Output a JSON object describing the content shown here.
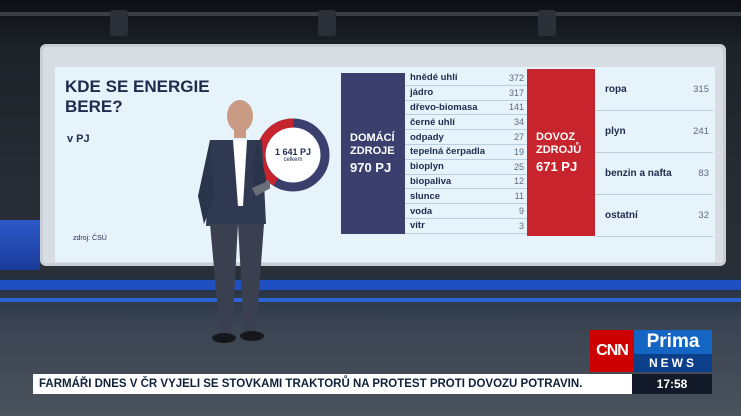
{
  "graphic": {
    "title": "KDE SE ENERGIE BERE?",
    "unit": "v PJ",
    "source": "zdroj: ČSÚ",
    "donut": {
      "total": "1 641 PJ",
      "label": "celkem",
      "domestic_share": 0.591,
      "import_share": 0.409
    },
    "domestic": {
      "label_line1": "DOMÁCÍ",
      "label_line2": "ZDROJE",
      "value": "970 PJ",
      "items": [
        {
          "name": "hnědé uhlí",
          "value": "372"
        },
        {
          "name": "jádro",
          "value": "317"
        },
        {
          "name": "dřevo-biomasa",
          "value": "141"
        },
        {
          "name": "černé uhlí",
          "value": "34"
        },
        {
          "name": "odpady",
          "value": "27"
        },
        {
          "name": "tepelná čerpadla",
          "value": "19"
        },
        {
          "name": "bioplyn",
          "value": "25"
        },
        {
          "name": "biopaliva",
          "value": "12"
        },
        {
          "name": "slunce",
          "value": "11"
        },
        {
          "name": "voda",
          "value": "9"
        },
        {
          "name": "vítr",
          "value": "3"
        }
      ]
    },
    "imports": {
      "label_line1": "DOVOZ",
      "label_line2": "ZDROJŮ",
      "value": "671 PJ",
      "items": [
        {
          "name": "ropa",
          "value": "315"
        },
        {
          "name": "plyn",
          "value": "241"
        },
        {
          "name": "benzin a nafta",
          "value": "83"
        },
        {
          "name": "ostatní",
          "value": "32"
        }
      ]
    },
    "colors": {
      "domestic": "#3a3f6d",
      "import": "#c8242d",
      "panel": "#e6f3fa"
    }
  },
  "branding": {
    "cnn": "CNN",
    "prima_line1": "Prima",
    "prima_line2": "NEWS"
  },
  "ticker": {
    "text": "FARMÁŘI DNES V ČR VYJELI SE STOVKAMI TRAKTORŮ NA PROTEST PROTI DOVOZU POTRAVIN.",
    "clock": "17:58"
  }
}
